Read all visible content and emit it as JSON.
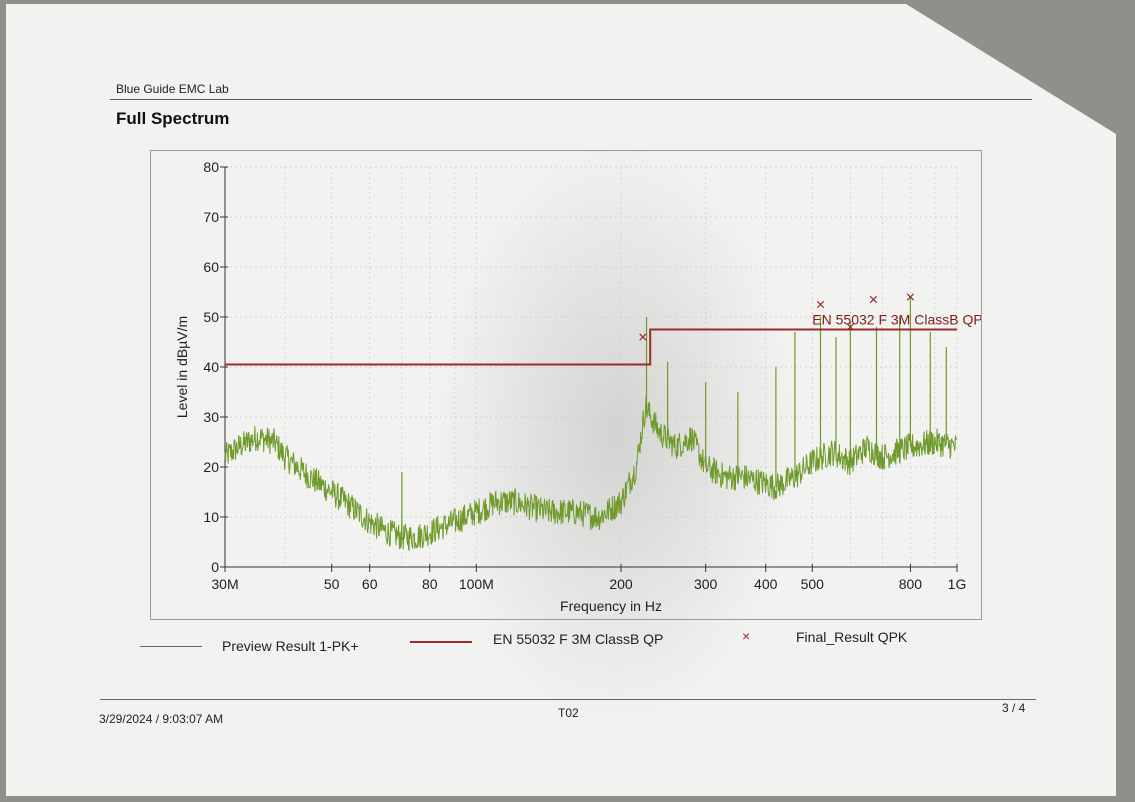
{
  "header": {
    "lab_name": "Blue Guide EMC Lab",
    "title": "Full Spectrum"
  },
  "chart_data": {
    "type": "line",
    "title": "",
    "xlabel": "Frequency in Hz",
    "ylabel": "Level in dBµV/m",
    "x_scale": "log",
    "xlim": [
      30000000,
      1000000000
    ],
    "ylim": [
      0,
      80
    ],
    "y_ticks": [
      0,
      10,
      20,
      30,
      40,
      50,
      60,
      70,
      80
    ],
    "x_tick_labels": [
      {
        "value": 30000000,
        "label": "30M"
      },
      {
        "value": 50000000,
        "label": "50"
      },
      {
        "value": 60000000,
        "label": "60"
      },
      {
        "value": 80000000,
        "label": "80"
      },
      {
        "value": 100000000,
        "label": "100M"
      },
      {
        "value": 200000000,
        "label": "200"
      },
      {
        "value": 300000000,
        "label": "300"
      },
      {
        "value": 400000000,
        "label": "400"
      },
      {
        "value": 500000000,
        "label": "500"
      },
      {
        "value": 800000000,
        "label": "800"
      },
      {
        "value": 1000000000,
        "label": "1G"
      }
    ],
    "grid": true,
    "series": [
      {
        "name": "Preview Result 1-PK+",
        "color": "#6f9a2c",
        "x": [
          30000000,
          32000000,
          35000000,
          38000000,
          40000000,
          45000000,
          50000000,
          55000000,
          60000000,
          65000000,
          70000000,
          75000000,
          80000000,
          90000000,
          100000000,
          110000000,
          120000000,
          140000000,
          160000000,
          180000000,
          200000000,
          215000000,
          225000000,
          240000000,
          260000000,
          280000000,
          300000000,
          330000000,
          360000000,
          390000000,
          420000000,
          460000000,
          500000000,
          550000000,
          600000000,
          650000000,
          700000000,
          800000000,
          900000000,
          1000000000
        ],
        "y": [
          22,
          24,
          26,
          25,
          22,
          18,
          15,
          12,
          9,
          7,
          6,
          6,
          7,
          9,
          11,
          13,
          13,
          11,
          11,
          10,
          13,
          20,
          32,
          27,
          24,
          26,
          20,
          18,
          18,
          17,
          16,
          18,
          21,
          23,
          21,
          24,
          22,
          24,
          25,
          24
        ]
      },
      {
        "name": "EN 55032 F 3M ClassB QP",
        "color": "#9b2a2a",
        "x": [
          30000000,
          230000000,
          230000000,
          1000000000
        ],
        "y": [
          40.5,
          40.5,
          47.5,
          47.5
        ]
      }
    ],
    "spikes": [
      {
        "x": 70000000,
        "y": 19
      },
      {
        "x": 226000000,
        "y": 50
      },
      {
        "x": 250000000,
        "y": 41
      },
      {
        "x": 300000000,
        "y": 37
      },
      {
        "x": 350000000,
        "y": 35
      },
      {
        "x": 420000000,
        "y": 40
      },
      {
        "x": 460000000,
        "y": 47
      },
      {
        "x": 520000000,
        "y": 50
      },
      {
        "x": 560000000,
        "y": 46
      },
      {
        "x": 600000000,
        "y": 49
      },
      {
        "x": 680000000,
        "y": 48
      },
      {
        "x": 760000000,
        "y": 50
      },
      {
        "x": 800000000,
        "y": 54
      },
      {
        "x": 880000000,
        "y": 47
      },
      {
        "x": 950000000,
        "y": 44
      }
    ],
    "final_results": {
      "name": "Final_Result QPK",
      "color": "#9b2a2a",
      "marker": "x",
      "points": [
        {
          "x": 222000000,
          "y": 46
        },
        {
          "x": 520000000,
          "y": 52.5
        },
        {
          "x": 600000000,
          "y": 48
        },
        {
          "x": 670000000,
          "y": 53.5
        },
        {
          "x": 800000000,
          "y": 54
        }
      ]
    },
    "annotations": [
      {
        "text": "EN 55032 F 3M ClassB QP",
        "x": 500000000,
        "y": 49.5
      }
    ],
    "legend_placement": "bottom"
  },
  "legend": {
    "preview_label": "Preview Result 1-PK+",
    "limit_label": "EN 55032 F 3M ClassB QP",
    "final_label": "Final_Result QPK",
    "final_marker": "×"
  },
  "footer": {
    "datetime": "3/29/2024  / 9:03:07 AM",
    "test_id": "T02",
    "page": "3 / 4"
  }
}
